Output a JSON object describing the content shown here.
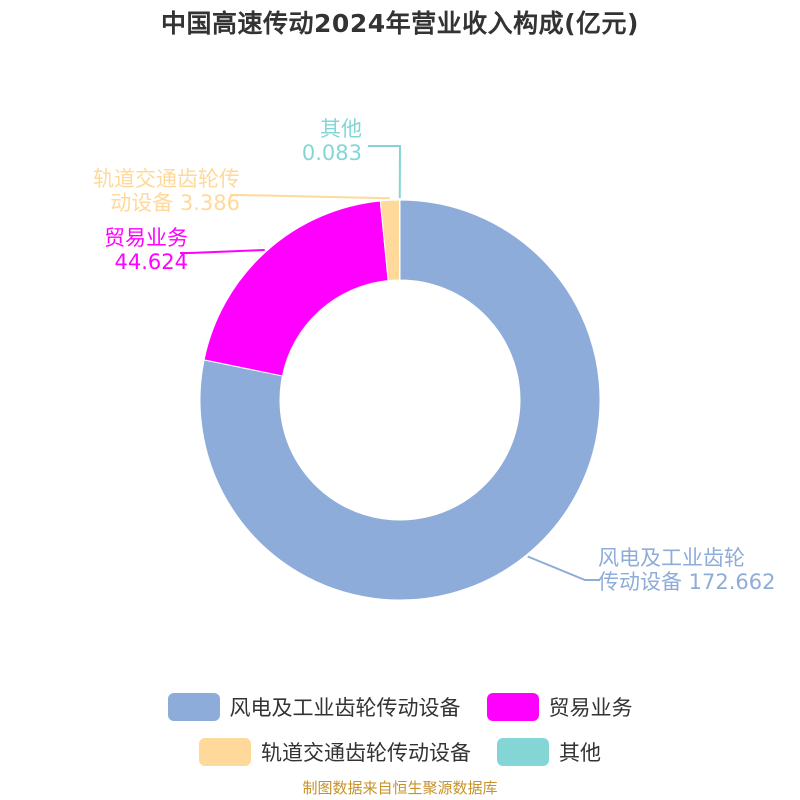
{
  "title": "中国高速传动2024年营业收入构成(亿元)",
  "source": "制图数据来自恒生聚源数据库",
  "chart_data": {
    "type": "pie",
    "donut": true,
    "title": "中国高速传动2024年营业收入构成(亿元)",
    "slices": [
      {
        "name": "风电及工业齿轮传动设备",
        "value": 172.662,
        "value_label": "172.662",
        "color": "#8eacd9",
        "label_lines": [
          "风电及工业齿轮",
          "传动设备 172.662"
        ]
      },
      {
        "name": "贸易业务",
        "value": 44.624,
        "value_label": "44.624",
        "color": "#ff00ff",
        "label_lines": [
          "贸易业务",
          "44.624"
        ]
      },
      {
        "name": "轨道交通齿轮传动设备",
        "value": 3.386,
        "value_label": "3.386",
        "color": "#ffd99a",
        "label_lines": [
          "轨道交通齿轮传",
          "动设备 3.386"
        ]
      },
      {
        "name": "其他",
        "value": 0.083,
        "value_label": "0.083",
        "color": "#84d6d6",
        "label_lines": [
          "其他",
          "0.083"
        ]
      }
    ],
    "legend": {
      "position": "bottom"
    }
  }
}
